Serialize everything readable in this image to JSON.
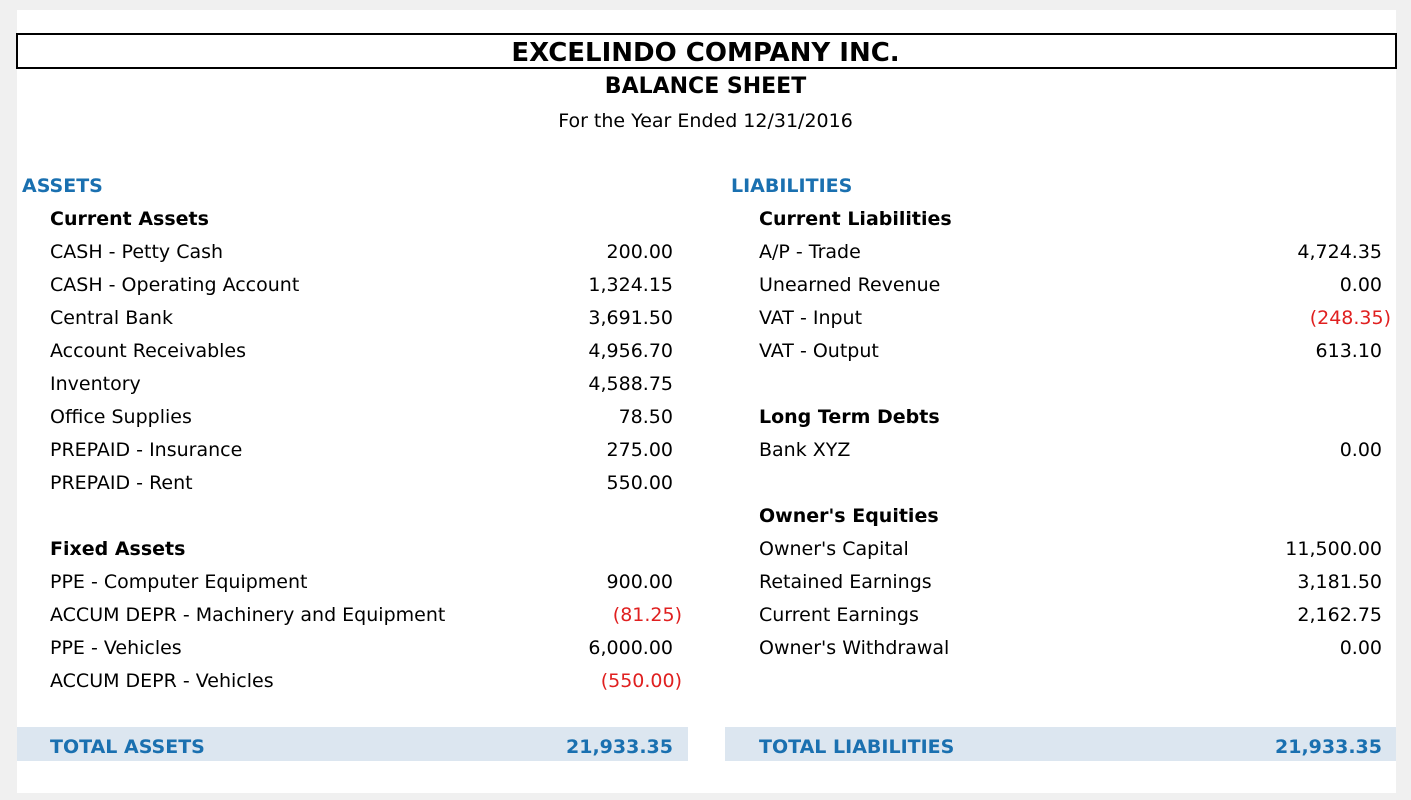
{
  "header": {
    "company": "EXCELINDO COMPANY INC.",
    "title": "BALANCE SHEET",
    "period": "For the Year Ended 12/31/2016"
  },
  "assets": {
    "heading": "ASSETS",
    "sections": [
      {
        "heading": "Current Assets",
        "rows": [
          {
            "label": "CASH - Petty Cash",
            "amount": "200.00"
          },
          {
            "label": "CASH - Operating Account",
            "amount": "1,324.15"
          },
          {
            "label": "Central Bank",
            "amount": "3,691.50"
          },
          {
            "label": "Account Receivables",
            "amount": "4,956.70"
          },
          {
            "label": "Inventory",
            "amount": "4,588.75"
          },
          {
            "label": "Office Supplies",
            "amount": "78.50"
          },
          {
            "label": "PREPAID - Insurance",
            "amount": "275.00"
          },
          {
            "label": "PREPAID - Rent",
            "amount": "550.00"
          }
        ]
      },
      {
        "heading": "Fixed Assets",
        "rows": [
          {
            "label": "PPE - Computer Equipment",
            "amount": "900.00"
          },
          {
            "label": "ACCUM DEPR - Machinery and Equipment",
            "amount": "(81.25)"
          },
          {
            "label": "PPE - Vehicles",
            "amount": "6,000.00"
          },
          {
            "label": "ACCUM DEPR - Vehicles",
            "amount": "(550.00)"
          }
        ]
      }
    ],
    "total": {
      "label": "TOTAL ASSETS",
      "amount": "21,933.35"
    }
  },
  "liabilities": {
    "heading": "LIABILITIES",
    "sections": [
      {
        "heading": "Current Liabilities",
        "rows": [
          {
            "label": "A/P - Trade",
            "amount": "4,724.35"
          },
          {
            "label": "Unearned Revenue",
            "amount": "0.00"
          },
          {
            "label": "VAT - Input",
            "amount": "(248.35)"
          },
          {
            "label": "VAT - Output",
            "amount": "613.10"
          }
        ]
      },
      {
        "heading": "Long Term Debts",
        "rows": [
          {
            "label": "Bank XYZ",
            "amount": "0.00"
          }
        ]
      },
      {
        "heading": "Owner's Equities",
        "rows": [
          {
            "label": "Owner's Capital",
            "amount": "11,500.00"
          },
          {
            "label": "Retained Earnings",
            "amount": "3,181.50"
          },
          {
            "label": "Current Earnings",
            "amount": "2,162.75"
          },
          {
            "label": "Owner's Withdrawal",
            "amount": "0.00"
          }
        ]
      }
    ],
    "total": {
      "label": "TOTAL LIABILITIES",
      "amount": "21,933.35"
    }
  }
}
